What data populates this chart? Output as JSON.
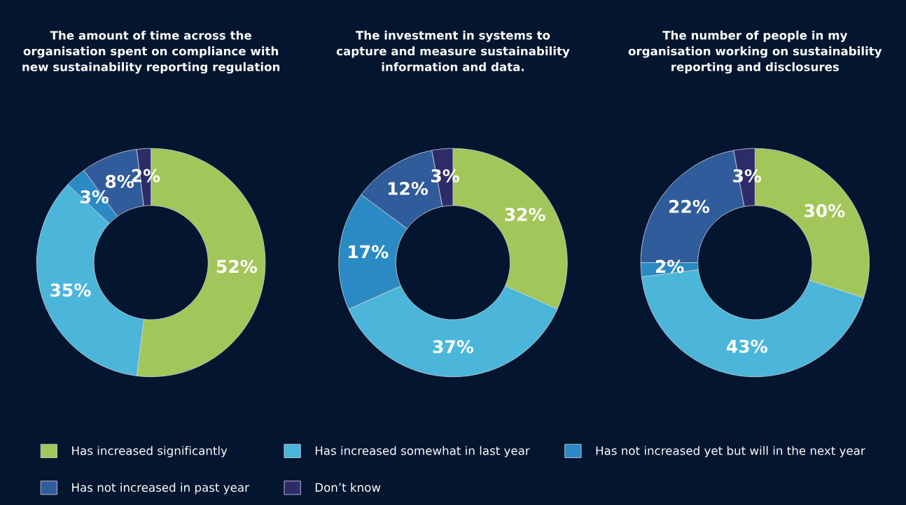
{
  "chart_data": [
    {
      "type": "donut",
      "title": "The amount of time across the\norganisation spent on compliance with\nnew sustainability reporting regulation",
      "categories": [
        "Has increased significantly",
        "Has increased somewhat in last year",
        "Has not increased yet but will in the next year",
        "Has not increased in past year",
        "Don’t know"
      ],
      "values": [
        52,
        35,
        3,
        8,
        2
      ],
      "value_labels": [
        "52%",
        "35%",
        "3%",
        "8%",
        "2%"
      ],
      "colors": [
        "#a3c65a",
        "#4bb6da",
        "#2b8ac3",
        "#305c9b",
        "#2d2c68"
      ],
      "legend": "bottom"
    },
    {
      "type": "donut",
      "title": "The investment in systems to\ncapture and measure sustainability\ninformation and data.",
      "categories": [
        null,
        null,
        null,
        null,
        null
      ],
      "values": [
        32,
        37,
        17,
        12,
        3
      ],
      "value_labels": [
        "32%",
        "37%",
        "17%",
        "12%",
        "3%"
      ],
      "colors": [
        "#a3c65a",
        "#4bb6da",
        "#2b8ac3",
        "#305c9b",
        "#2d2c68"
      ]
    },
    {
      "type": "donut",
      "title": "The number of people in my\norganisation working on sustainability\nreporting and disclosures",
      "categories": [
        null,
        null,
        null,
        null,
        null
      ],
      "values": [
        30,
        43,
        2,
        22,
        3
      ],
      "value_labels": [
        "30%",
        "43%",
        "2%",
        "22%",
        "3%"
      ],
      "colors": [
        "#a3c65a",
        "#4bb6da",
        "#2b8ac3",
        "#305c9b",
        "#2d2c68"
      ]
    }
  ]
}
